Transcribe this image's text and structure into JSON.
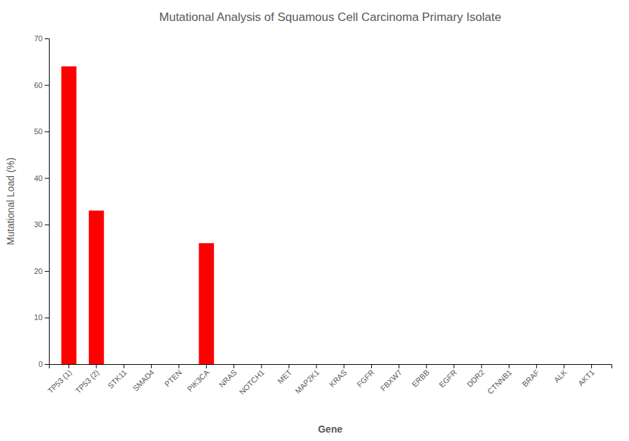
{
  "chart_data": {
    "type": "bar",
    "title": "Mutational Analysis of Squamous Cell Carcinoma Primary Isolate",
    "xlabel": "Gene",
    "ylabel": "Mutational Load (%)",
    "categories": [
      "TP53 (1)",
      "TP53 (2)",
      "STK11",
      "SMAD4",
      "PTEN",
      "PIK3CA",
      "NRAS",
      "NOTCH1",
      "MET",
      "MAP2K1",
      "KRAS",
      "FGFR",
      "FBXW7",
      "ERBB",
      "EGFR",
      "DDR2",
      "CTNNB1",
      "BRAF",
      "ALK",
      "AKT1"
    ],
    "values": [
      64,
      33,
      0,
      0,
      0,
      26,
      0,
      0,
      0,
      0,
      0,
      0,
      0,
      0,
      0,
      0,
      0,
      0,
      0,
      0
    ],
    "color": "#ff0000",
    "ylim": [
      0,
      70
    ],
    "yticks": [
      0,
      10,
      20,
      30,
      40,
      50,
      60,
      70
    ],
    "grid": false
  }
}
